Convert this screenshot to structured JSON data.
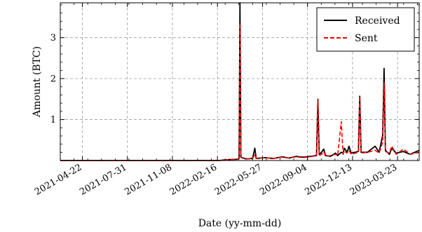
{
  "chart_data": {
    "type": "line",
    "title": "",
    "xlabel": "Date (yy-mm-dd)",
    "ylabel": "Amount (BTC)",
    "xlim": [
      "2021-03-04",
      "2023-05-10"
    ],
    "ylim": [
      0,
      3.85
    ],
    "grid": true,
    "legend_position": "top-right",
    "x_ticks": [
      "2021-04-22",
      "2021-07-31",
      "2021-11-08",
      "2022-02-16",
      "2022-05-27",
      "2022-09-04",
      "2022-12-13",
      "2023-03-23"
    ],
    "y_ticks": [
      1,
      2,
      3
    ],
    "y_tick_labels": [
      "1",
      "2",
      "3"
    ],
    "series": [
      {
        "name": "Received",
        "color": "#000000",
        "style": "solid",
        "points": [
          [
            "2021-03-04",
            0.0
          ],
          [
            "2022-02-20",
            0.0
          ],
          [
            "2022-03-10",
            0.02
          ],
          [
            "2022-04-01",
            0.03
          ],
          [
            "2022-04-05",
            0.05
          ],
          [
            "2022-04-07",
            3.85
          ],
          [
            "2022-04-09",
            0.08
          ],
          [
            "2022-04-20",
            0.04
          ],
          [
            "2022-05-05",
            0.05
          ],
          [
            "2022-05-10",
            0.3
          ],
          [
            "2022-05-13",
            0.05
          ],
          [
            "2022-06-01",
            0.07
          ],
          [
            "2022-06-20",
            0.05
          ],
          [
            "2022-07-10",
            0.09
          ],
          [
            "2022-07-25",
            0.06
          ],
          [
            "2022-08-10",
            0.1
          ],
          [
            "2022-08-25",
            0.08
          ],
          [
            "2022-09-10",
            0.1
          ],
          [
            "2022-09-24",
            0.12
          ],
          [
            "2022-09-27",
            1.5
          ],
          [
            "2022-09-30",
            0.15
          ],
          [
            "2022-10-05",
            0.2
          ],
          [
            "2022-10-10",
            0.28
          ],
          [
            "2022-10-14",
            0.12
          ],
          [
            "2022-10-25",
            0.1
          ],
          [
            "2022-11-05",
            0.18
          ],
          [
            "2022-11-10",
            0.12
          ],
          [
            "2022-11-18",
            0.2
          ],
          [
            "2022-11-22",
            0.18
          ],
          [
            "2022-11-25",
            0.3
          ],
          [
            "2022-12-01",
            0.2
          ],
          [
            "2022-12-05",
            0.35
          ],
          [
            "2022-12-10",
            0.18
          ],
          [
            "2022-12-26",
            0.22
          ],
          [
            "2022-12-29",
            1.57
          ],
          [
            "2023-01-01",
            0.2
          ],
          [
            "2023-01-15",
            0.2
          ],
          [
            "2023-02-01",
            0.35
          ],
          [
            "2023-02-10",
            0.2
          ],
          [
            "2023-02-18",
            0.62
          ],
          [
            "2023-02-21",
            2.25
          ],
          [
            "2023-02-24",
            0.25
          ],
          [
            "2023-03-05",
            0.15
          ],
          [
            "2023-03-10",
            0.3
          ],
          [
            "2023-03-20",
            0.18
          ],
          [
            "2023-04-05",
            0.22
          ],
          [
            "2023-04-20",
            0.15
          ],
          [
            "2023-05-10",
            0.25
          ]
        ]
      },
      {
        "name": "Sent",
        "color": "#ff0000",
        "style": "dashed",
        "points": [
          [
            "2021-03-04",
            0.0
          ],
          [
            "2022-02-20",
            0.0
          ],
          [
            "2022-03-10",
            0.02
          ],
          [
            "2022-04-01",
            0.03
          ],
          [
            "2022-04-05",
            0.05
          ],
          [
            "2022-04-07",
            3.35
          ],
          [
            "2022-04-09",
            0.07
          ],
          [
            "2022-04-20",
            0.04
          ],
          [
            "2022-05-05",
            0.05
          ],
          [
            "2022-05-10",
            0.15
          ],
          [
            "2022-05-13",
            0.05
          ],
          [
            "2022-06-01",
            0.07
          ],
          [
            "2022-06-20",
            0.05
          ],
          [
            "2022-07-10",
            0.08
          ],
          [
            "2022-07-25",
            0.06
          ],
          [
            "2022-08-10",
            0.09
          ],
          [
            "2022-08-25",
            0.07
          ],
          [
            "2022-09-10",
            0.09
          ],
          [
            "2022-09-24",
            0.12
          ],
          [
            "2022-09-27",
            1.5
          ],
          [
            "2022-09-30",
            0.12
          ],
          [
            "2022-10-05",
            0.15
          ],
          [
            "2022-10-10",
            0.22
          ],
          [
            "2022-10-14",
            0.1
          ],
          [
            "2022-10-25",
            0.12
          ],
          [
            "2022-11-05",
            0.15
          ],
          [
            "2022-11-10",
            0.12
          ],
          [
            "2022-11-18",
            0.95
          ],
          [
            "2022-11-22",
            0.15
          ],
          [
            "2022-11-25",
            0.22
          ],
          [
            "2022-12-01",
            0.18
          ],
          [
            "2022-12-05",
            0.25
          ],
          [
            "2022-12-10",
            0.15
          ],
          [
            "2022-12-26",
            0.2
          ],
          [
            "2022-12-29",
            1.57
          ],
          [
            "2023-01-01",
            0.18
          ],
          [
            "2023-01-15",
            0.2
          ],
          [
            "2023-02-01",
            0.25
          ],
          [
            "2023-02-10",
            0.18
          ],
          [
            "2023-02-18",
            0.45
          ],
          [
            "2023-02-21",
            1.9
          ],
          [
            "2023-02-24",
            0.22
          ],
          [
            "2023-03-05",
            0.18
          ],
          [
            "2023-03-10",
            0.35
          ],
          [
            "2023-03-20",
            0.15
          ],
          [
            "2023-04-05",
            0.28
          ],
          [
            "2023-04-20",
            0.15
          ],
          [
            "2023-05-10",
            0.2
          ]
        ]
      }
    ]
  }
}
